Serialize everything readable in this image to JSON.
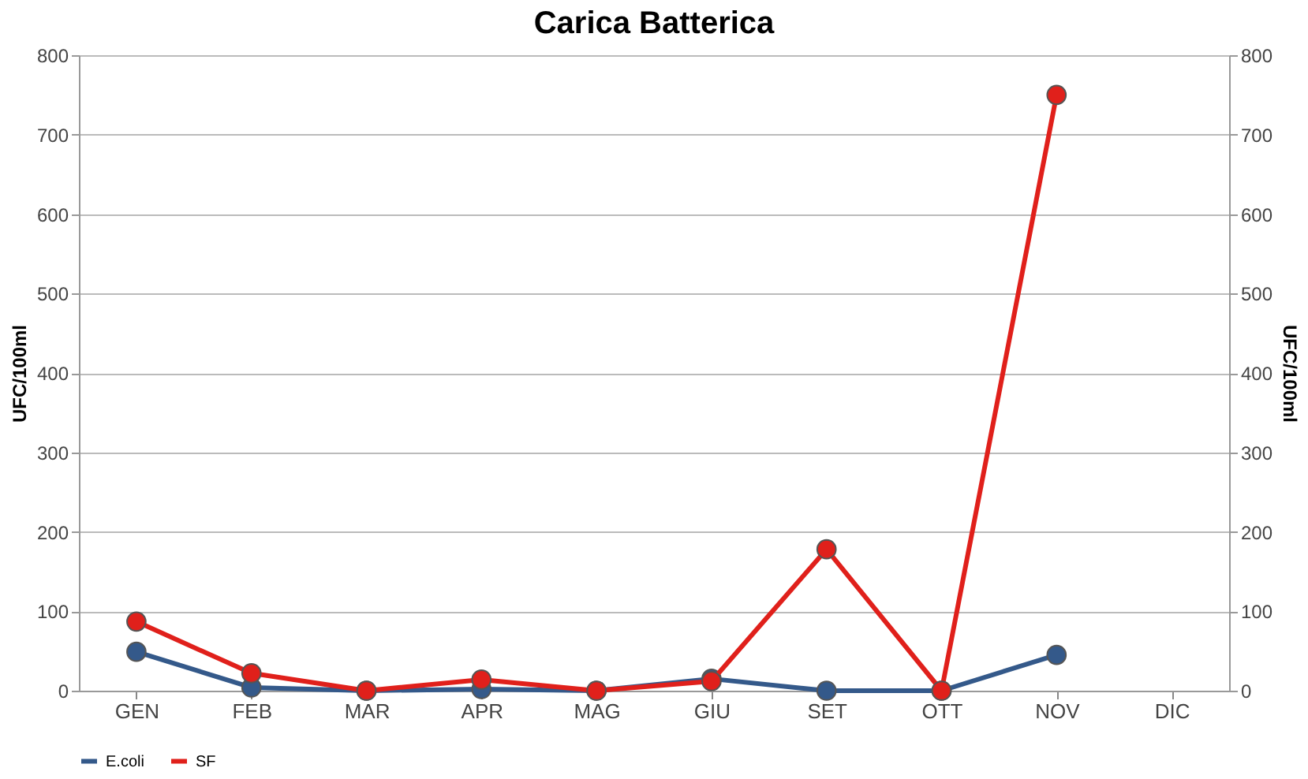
{
  "chart_data": {
    "type": "line",
    "title": "Carica Batterica",
    "ylabel": "UFC/100ml",
    "y2label": "UFC/100ml",
    "categories": [
      "GEN",
      "FEB",
      "MAR",
      "APR",
      "MAG",
      "GIU",
      "SET",
      "OTT",
      "NOV",
      "DIC"
    ],
    "series": [
      {
        "name": "E.coli",
        "color": "#34598a",
        "values": [
          49,
          4,
          0,
          2,
          0,
          15,
          0,
          0,
          45,
          null
        ]
      },
      {
        "name": "SF",
        "color": "#e0201b",
        "axis": "y2",
        "values": [
          87,
          22,
          0,
          14,
          0,
          12,
          178,
          0,
          750,
          null
        ]
      }
    ],
    "ylim": [
      0,
      800
    ],
    "yticks": [
      0,
      100,
      200,
      300,
      400,
      500,
      600,
      700,
      800
    ],
    "y2lim": [
      0,
      800
    ],
    "y2ticks": [
      0,
      100,
      200,
      300,
      400,
      500,
      600,
      700,
      800
    ],
    "grid": "y",
    "legend": "bottom",
    "marker": "circle",
    "line_style": "solid"
  }
}
